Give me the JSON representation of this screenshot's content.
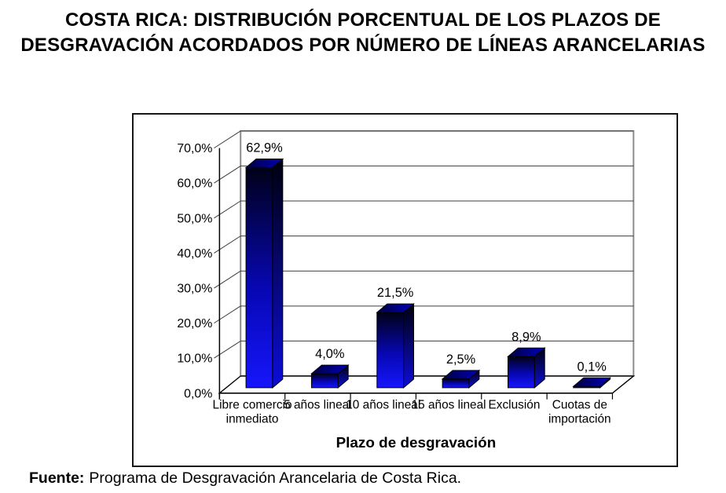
{
  "title": {
    "line1": "COSTA RICA: DISTRIBUCIÓN PORCENTUAL DE LOS PLAZOS DE",
    "line2": "DESGRAVACIÓN ACORDADOS POR NÚMERO DE LÍNEAS ARANCELARIAS"
  },
  "chart_data": {
    "type": "bar",
    "style": "3d-column",
    "categories": [
      "Libre comercio inmediato",
      "5 años lineal",
      "10 años lineal",
      "15 años lineal",
      "Exclusión",
      "Cuotas de importación"
    ],
    "category_lines": [
      [
        "Libre comercio",
        "inmediato"
      ],
      [
        "5 años lineal"
      ],
      [
        "10 años lineal"
      ],
      [
        "15 años lineal"
      ],
      [
        "Exclusión"
      ],
      [
        "Cuotas de",
        "importación"
      ]
    ],
    "values": [
      62.9,
      4.0,
      21.5,
      2.5,
      8.9,
      0.1
    ],
    "value_labels": [
      "62,9%",
      "4,0%",
      "21,5%",
      "2,5%",
      "8,9%",
      "0,1%"
    ],
    "xlabel": "Plazo de desgravación",
    "ylabel": "",
    "ylim": [
      0,
      70
    ],
    "ytick_labels": [
      "0,0%",
      "10,0%",
      "20,0%",
      "30,0%",
      "40,0%",
      "50,0%",
      "60,0%",
      "70,0%"
    ],
    "grid": true,
    "legend": "none",
    "colors": {
      "bar_front_top": "#010118",
      "bar_front_mid": "#0707b4",
      "bar_front_bottom": "#1616fc",
      "bar_top_left": "#000040",
      "bar_top_right": "#0000b8",
      "bar_side_top": "#00000e",
      "bar_side_bottom": "#0d0dd8",
      "wall_outline": "#8c8c8c",
      "gridline": "#3c3c3c",
      "axis": "#000000"
    }
  },
  "source": {
    "prefix": "Fuente:",
    "text": "Programa de Desgravación Arancelaria de Costa Rica."
  }
}
